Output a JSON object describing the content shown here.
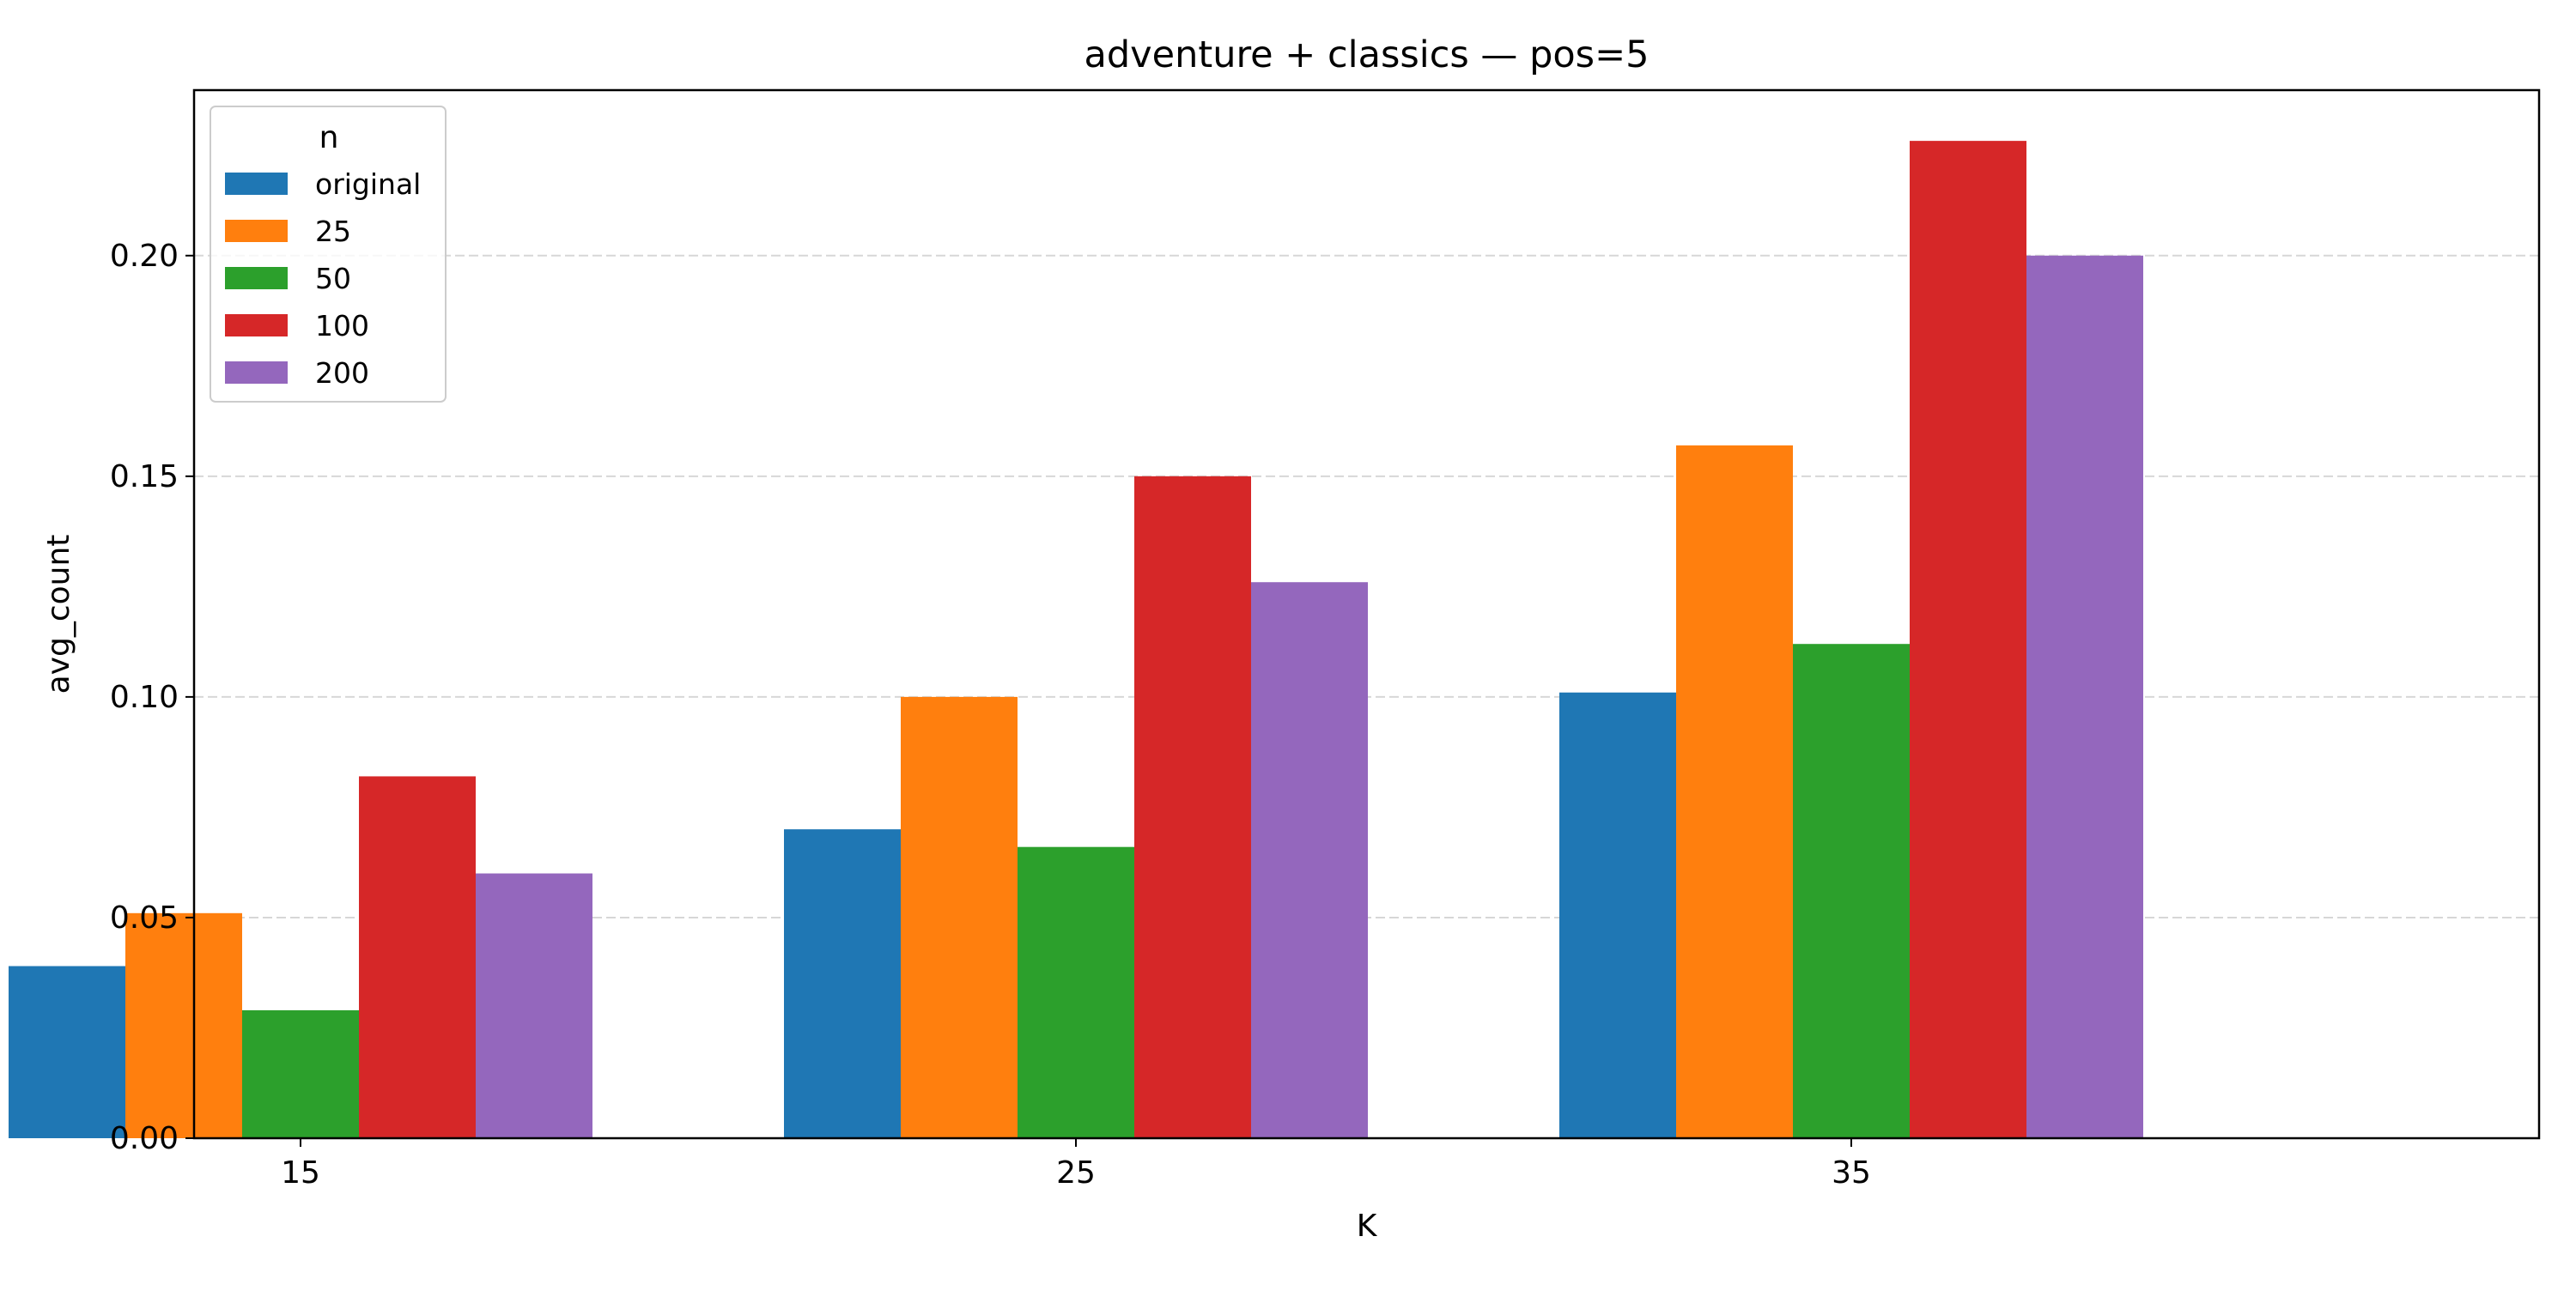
{
  "chart_data": {
    "type": "bar",
    "title": "adventure + classics — pos=5",
    "xlabel": "K",
    "ylabel": "avg_count",
    "categories": [
      "15",
      "25",
      "35"
    ],
    "ylim": [
      0,
      0.2375
    ],
    "yticks": [
      0.0,
      0.05,
      0.1,
      0.15,
      0.2
    ],
    "ytick_labels": [
      "0.00",
      "0.05",
      "0.10",
      "0.15",
      "0.20"
    ],
    "grid": {
      "y": true,
      "x": false,
      "style": "dashed"
    },
    "legend": {
      "title": "n",
      "placement": "top-left"
    },
    "series": [
      {
        "name": "original",
        "color": "#1f77b4",
        "values": [
          0.039,
          0.07,
          0.101
        ]
      },
      {
        "name": "25",
        "color": "#ff7f0e",
        "values": [
          0.051,
          0.1,
          0.157
        ]
      },
      {
        "name": "50",
        "color": "#2ca02c",
        "values": [
          0.029,
          0.066,
          0.112
        ]
      },
      {
        "name": "100",
        "color": "#d62728",
        "values": [
          0.082,
          0.15,
          0.226
        ]
      },
      {
        "name": "200",
        "color": "#9467bd",
        "values": [
          0.06,
          0.126,
          0.2
        ]
      }
    ]
  }
}
